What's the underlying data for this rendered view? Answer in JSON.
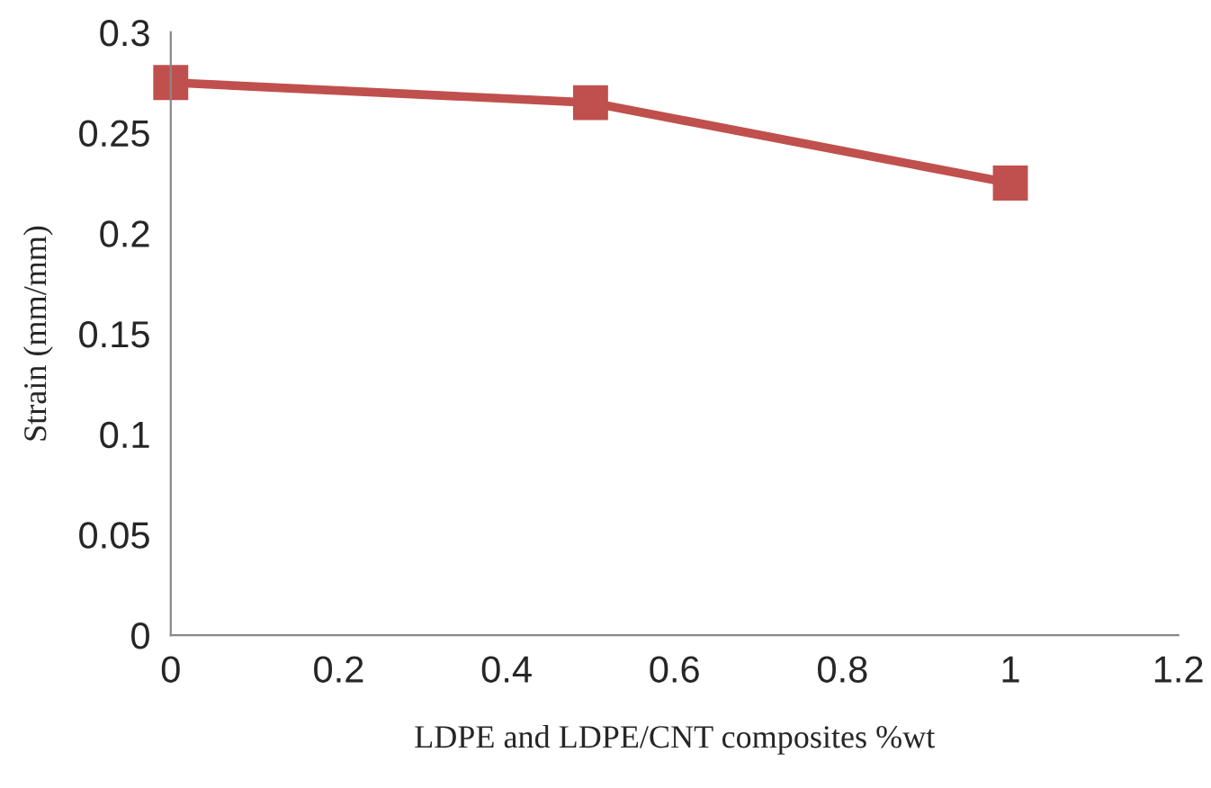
{
  "chart_data": {
    "type": "line",
    "xlabel": "LDPE and LDPE/CNT composites %wt",
    "ylabel": "Strain (mm/mm)",
    "x": [
      0,
      0.5,
      1
    ],
    "series": [
      {
        "color": "#c0504d",
        "values": [
          0.275,
          0.265,
          0.225
        ]
      }
    ],
    "xlim": [
      0,
      1.2
    ],
    "xticks": [
      0,
      0.2,
      0.4,
      0.6,
      0.8,
      1,
      1.2
    ],
    "ylim": [
      0,
      0.3
    ],
    "yticks": [
      0,
      0.05,
      0.1,
      0.15,
      0.2,
      0.25,
      0.3
    ],
    "grid": false,
    "legend": false,
    "marker": "square",
    "line_style": "solid"
  }
}
